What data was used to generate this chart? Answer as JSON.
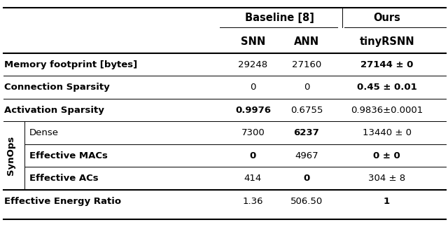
{
  "col_headers_level1_labels": [
    "Baseline [8]",
    "Ours"
  ],
  "col_headers_level2": [
    "SNN",
    "ANN",
    "tinyRSNN"
  ],
  "rows": [
    {
      "label": "Memory footprint [bytes]",
      "label_bold": true,
      "indent": false,
      "values": [
        "29248",
        "27160",
        "27144 ± 0"
      ],
      "bold": [
        false,
        false,
        true
      ]
    },
    {
      "label": "Connection Sparsity",
      "label_bold": true,
      "indent": false,
      "values": [
        "0",
        "0",
        "0.45 ± 0.01"
      ],
      "bold": [
        false,
        false,
        true
      ]
    },
    {
      "label": "Activation Sparsity",
      "label_bold": true,
      "indent": false,
      "values": [
        "0.9976",
        "0.6755",
        "0.9836±0.0001"
      ],
      "bold": [
        true,
        false,
        false
      ]
    },
    {
      "label": "Dense",
      "label_bold": false,
      "indent": true,
      "synops": true,
      "values": [
        "7300",
        "6237",
        "13440 ± 0"
      ],
      "bold": [
        false,
        true,
        false
      ]
    },
    {
      "label": "Effective MACs",
      "label_bold": true,
      "indent": true,
      "synops": false,
      "values": [
        "0",
        "4967",
        "0 ± 0"
      ],
      "bold": [
        true,
        false,
        true
      ]
    },
    {
      "label": "Effective ACs",
      "label_bold": true,
      "indent": true,
      "synops": false,
      "values": [
        "414",
        "0",
        "304 ± 8"
      ],
      "bold": [
        false,
        true,
        false
      ]
    },
    {
      "label": "Effective Energy Ratio",
      "label_bold": true,
      "indent": false,
      "values": [
        "1.36",
        "506.50",
        "1"
      ],
      "bold": [
        false,
        false,
        true
      ]
    }
  ],
  "background_color": "#ffffff",
  "text_color": "#000000",
  "line_color": "#000000",
  "fontsize_header": 10.5,
  "fontsize_body": 9.5,
  "lw_thick": 1.5,
  "lw_thin": 0.7
}
